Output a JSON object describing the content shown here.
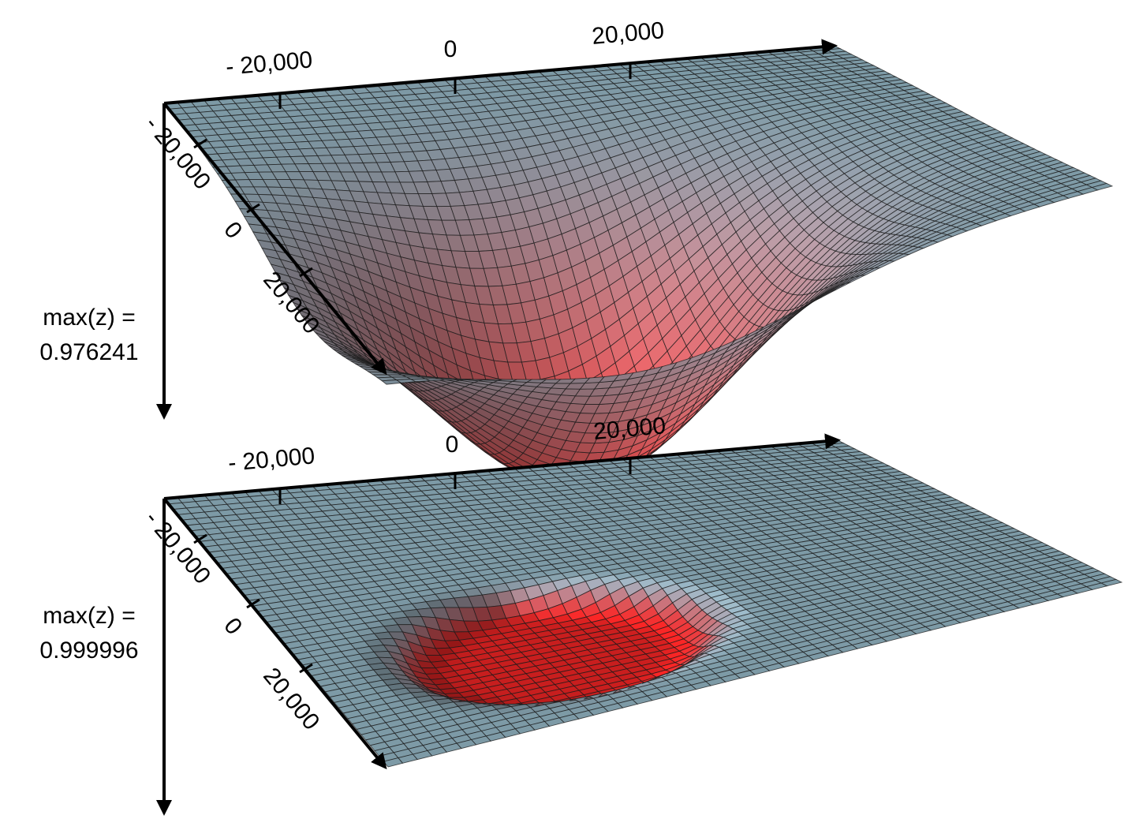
{
  "chart_data": [
    {
      "type": "surface",
      "annotation_line1": "max(z) =",
      "annotation_line2": "0.976241",
      "x_ticks": [
        "- 20,000",
        "0",
        "20,000"
      ],
      "y_ticks": [
        "- 20,000",
        "0",
        "20,000"
      ],
      "z_max": 0.976241,
      "z_axis_direction": "down",
      "grid": true,
      "colors": {
        "flat": "#7d9aa6",
        "deep": "#d23b3b",
        "mesh": "#1a1a1a"
      }
    },
    {
      "type": "surface",
      "annotation_line1": "max(z) =",
      "annotation_line2": "0.999996",
      "x_ticks": [
        "- 20,000",
        "0",
        "20,000"
      ],
      "y_ticks": [
        "- 20,000",
        "0",
        "20,000"
      ],
      "z_max": 0.999996,
      "z_axis_direction": "down",
      "grid": true,
      "colors": {
        "flat": "#7d9aa6",
        "deep": "#c81e1e",
        "mesh": "#1a1a1a"
      }
    }
  ]
}
